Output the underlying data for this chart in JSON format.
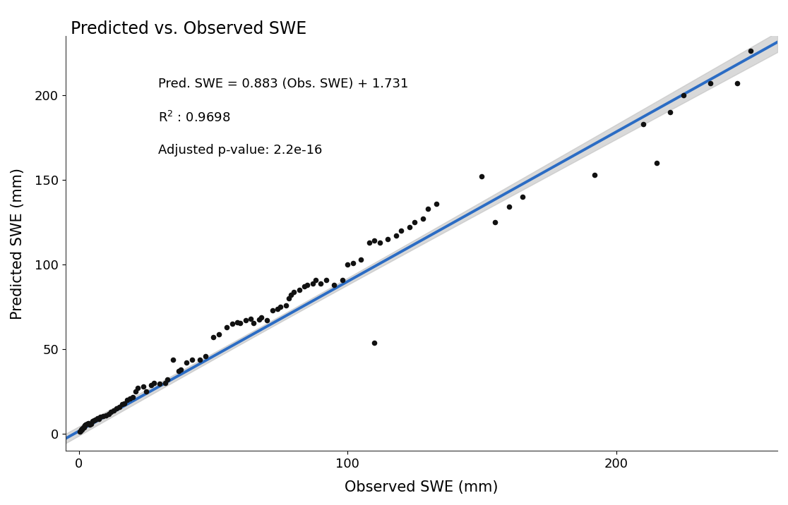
{
  "title": "Predicted vs. Observed SWE",
  "xlabel": "Observed SWE (mm)",
  "ylabel": "Predicted SWE (mm)",
  "slope": 0.883,
  "intercept": 1.731,
  "r2": 0.9698,
  "pvalue": "2.2e-16",
  "equation": "Pred. SWE = 0.883 (Obs. SWE) + 1.731",
  "pvalue_label": "Adjusted p-value: 2.2e-16",
  "xlim": [
    -5,
    260
  ],
  "ylim": [
    -10,
    235
  ],
  "xticks": [
    0,
    100,
    200
  ],
  "yticks": [
    0,
    50,
    100,
    150,
    200
  ],
  "line_color": "#2b6cc4",
  "ci_color": "#bbbbbb",
  "scatter_color": "#111111",
  "background_color": "#ffffff",
  "obs_swe": [
    0.3,
    0.5,
    0.8,
    1.0,
    1.2,
    1.5,
    1.8,
    2.0,
    2.2,
    2.5,
    3.0,
    3.5,
    4.0,
    4.5,
    5.0,
    5.5,
    6.0,
    7.0,
    7.5,
    8.0,
    9.0,
    10.0,
    11.0,
    12.0,
    13.0,
    14.0,
    15.0,
    16.0,
    17.0,
    18.0,
    19.0,
    20.0,
    21.0,
    22.0,
    24.0,
    25.0,
    27.0,
    28.0,
    30.0,
    32.0,
    33.0,
    35.0,
    37.0,
    38.0,
    40.0,
    42.0,
    45.0,
    47.0,
    50.0,
    52.0,
    55.0,
    57.0,
    59.0,
    60.0,
    62.0,
    64.0,
    65.0,
    67.0,
    68.0,
    70.0,
    72.0,
    74.0,
    75.0,
    77.0,
    78.0,
    79.0,
    80.0,
    82.0,
    84.0,
    85.0,
    87.0,
    88.0,
    90.0,
    92.0,
    95.0,
    98.0,
    100.0,
    102.0,
    105.0,
    108.0,
    110.0,
    112.0,
    115.0,
    118.0,
    120.0,
    123.0,
    125.0,
    128.0,
    130.0,
    133.0,
    110.0,
    150.0,
    155.0,
    160.0,
    165.0,
    192.0,
    210.0,
    215.0,
    220.0,
    225.0,
    235.0,
    245.0,
    250.0
  ],
  "pred_swe": [
    1.5,
    2.0,
    2.5,
    3.0,
    2.8,
    3.5,
    4.0,
    4.5,
    5.0,
    5.5,
    6.0,
    6.5,
    5.5,
    6.0,
    7.5,
    8.0,
    8.5,
    9.5,
    9.0,
    10.0,
    10.5,
    11.0,
    12.0,
    13.0,
    14.0,
    15.0,
    16.0,
    17.5,
    18.0,
    20.0,
    21.0,
    22.0,
    25.0,
    27.0,
    28.0,
    25.0,
    29.0,
    30.0,
    29.5,
    30.0,
    32.0,
    44.0,
    37.0,
    38.0,
    42.0,
    44.0,
    44.0,
    46.0,
    57.0,
    59.0,
    63.0,
    65.0,
    66.0,
    65.5,
    67.0,
    68.0,
    65.5,
    67.5,
    69.0,
    67.0,
    73.0,
    74.0,
    75.0,
    76.0,
    80.0,
    82.0,
    84.0,
    85.0,
    87.0,
    88.0,
    89.0,
    91.0,
    89.0,
    91.0,
    88.0,
    91.0,
    100.0,
    101.0,
    103.0,
    113.0,
    114.0,
    113.0,
    115.0,
    117.0,
    120.0,
    122.0,
    125.0,
    127.0,
    133.0,
    136.0,
    54.0,
    152.0,
    125.0,
    134.0,
    140.0,
    153.0,
    183.0,
    160.0,
    190.0,
    200.0,
    207.0,
    207.0,
    226.0
  ]
}
